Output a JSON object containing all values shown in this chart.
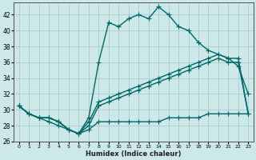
{
  "title": "",
  "xlabel": "Humidex (Indice chaleur)",
  "ylabel": "",
  "background_color": "#cce8e8",
  "grid_color": "#aacccc",
  "line_color": "#006666",
  "ylim": [
    26,
    43.5
  ],
  "xlim": [
    -0.5,
    23.5
  ],
  "yticks": [
    26,
    28,
    30,
    32,
    34,
    36,
    38,
    40,
    42
  ],
  "xticks": [
    0,
    1,
    2,
    3,
    4,
    5,
    6,
    7,
    8,
    9,
    10,
    11,
    12,
    13,
    14,
    15,
    16,
    17,
    18,
    19,
    20,
    21,
    22,
    23
  ],
  "lines": [
    {
      "x": [
        0,
        1,
        2,
        3,
        4,
        5,
        6,
        7,
        8,
        9,
        10,
        11,
        12,
        13,
        14,
        15,
        16,
        17,
        18,
        19,
        20,
        21,
        22,
        23
      ],
      "y": [
        30.5,
        29.5,
        29.0,
        29.0,
        28.5,
        27.5,
        27.0,
        29.0,
        36.0,
        41.0,
        40.5,
        41.5,
        42.0,
        41.5,
        43.0,
        42.0,
        40.5,
        40.0,
        38.5,
        37.5,
        37.0,
        36.5,
        35.5,
        32.0
      ],
      "marker": "+",
      "markersize": 5,
      "linewidth": 1.0
    },
    {
      "x": [
        0,
        1,
        2,
        3,
        4,
        5,
        6,
        7,
        8,
        9,
        10,
        11,
        12,
        13,
        14,
        15,
        16,
        17,
        18,
        19,
        20,
        21,
        22,
        23
      ],
      "y": [
        30.5,
        29.5,
        29.0,
        29.0,
        28.5,
        27.5,
        27.0,
        28.5,
        31.0,
        31.5,
        32.0,
        32.5,
        33.0,
        33.5,
        34.0,
        34.5,
        35.0,
        35.5,
        36.0,
        36.5,
        37.0,
        36.5,
        36.5,
        29.5
      ],
      "marker": "+",
      "markersize": 5,
      "linewidth": 1.0
    },
    {
      "x": [
        0,
        1,
        2,
        3,
        4,
        5,
        6,
        7,
        8,
        9,
        10,
        11,
        12,
        13,
        14,
        15,
        16,
        17,
        18,
        19,
        20,
        21,
        22,
        23
      ],
      "y": [
        30.5,
        29.5,
        29.0,
        29.0,
        28.5,
        27.5,
        27.0,
        28.0,
        30.5,
        31.0,
        31.5,
        32.0,
        32.5,
        33.0,
        33.5,
        34.0,
        34.5,
        35.0,
        35.5,
        36.0,
        36.5,
        36.0,
        36.0,
        29.5
      ],
      "marker": "+",
      "markersize": 5,
      "linewidth": 1.0
    },
    {
      "x": [
        0,
        1,
        2,
        3,
        4,
        5,
        6,
        7,
        8,
        9,
        10,
        11,
        12,
        13,
        14,
        15,
        16,
        17,
        18,
        19,
        20,
        21,
        22,
        23
      ],
      "y": [
        30.5,
        29.5,
        29.0,
        28.5,
        28.0,
        27.5,
        27.0,
        27.5,
        28.5,
        28.5,
        28.5,
        28.5,
        28.5,
        28.5,
        28.5,
        29.0,
        29.0,
        29.0,
        29.0,
        29.5,
        29.5,
        29.5,
        29.5,
        29.5
      ],
      "marker": "+",
      "markersize": 5,
      "linewidth": 1.0
    }
  ]
}
